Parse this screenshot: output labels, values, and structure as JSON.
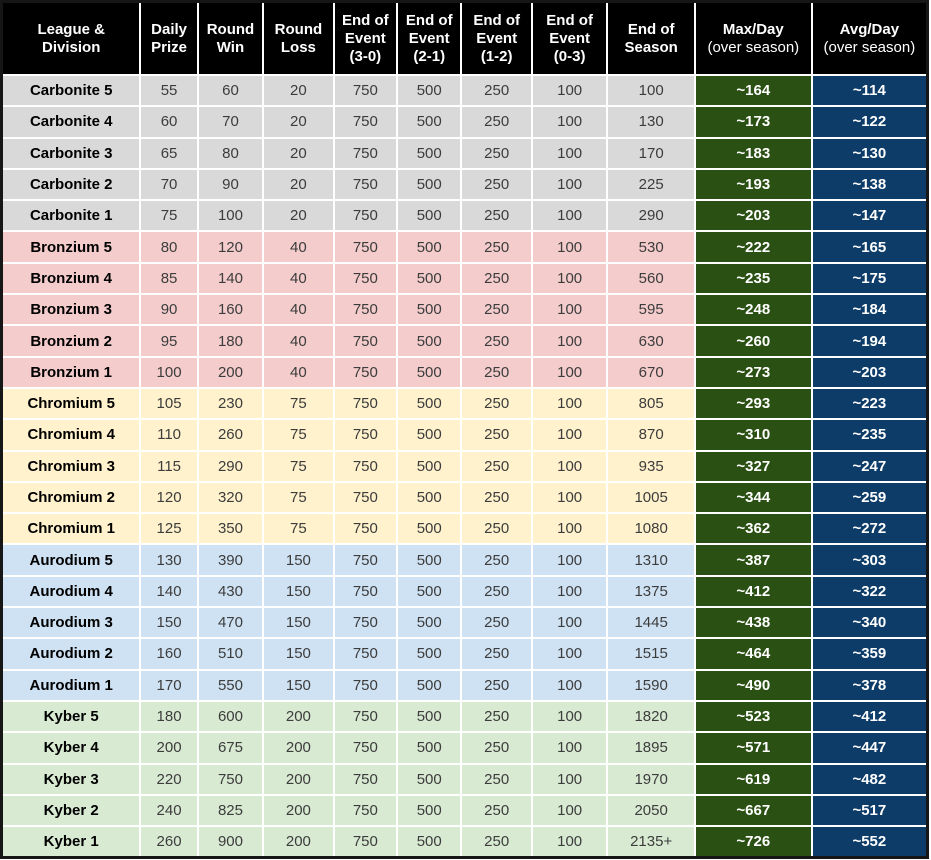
{
  "colors": {
    "header_bg": "#000000",
    "header_text": "#ffffff",
    "max_day_bg": "#2a5014",
    "avg_day_bg": "#0d3c68",
    "highlight_text": "#ffffff",
    "tier_backgrounds": {
      "carbonite": "#d9d9d9",
      "bronzium": "#f4cccc",
      "chromium": "#fff2cc",
      "aurodium": "#cfe2f3",
      "kyber": "#d9ead3"
    }
  },
  "chart_data": {
    "type": "table",
    "columns": [
      {
        "id": "division",
        "header_lines": [
          "League &",
          "Division"
        ]
      },
      {
        "id": "daily_prize",
        "header_lines": [
          "Daily",
          "Prize"
        ]
      },
      {
        "id": "round_win",
        "header_lines": [
          "Round",
          "Win"
        ]
      },
      {
        "id": "round_loss",
        "header_lines": [
          "Round",
          "Loss"
        ]
      },
      {
        "id": "end_event_3_0",
        "header_lines": [
          "End of",
          "Event",
          "(3-0)"
        ]
      },
      {
        "id": "end_event_2_1",
        "header_lines": [
          "End of",
          "Event",
          "(2-1)"
        ]
      },
      {
        "id": "end_event_1_2",
        "header_lines": [
          "End of",
          "Event",
          "(1-2)"
        ]
      },
      {
        "id": "end_event_0_3",
        "header_lines": [
          "End of",
          "Event",
          "(0-3)"
        ]
      },
      {
        "id": "end_season",
        "header_lines": [
          "End of",
          "Season"
        ]
      },
      {
        "id": "max_day",
        "header_lines": [
          "Max/Day",
          "(over season)"
        ],
        "subtitle_line": 1
      },
      {
        "id": "avg_day",
        "header_lines": [
          "Avg/Day",
          "(over season)"
        ],
        "subtitle_line": 1
      }
    ],
    "rows": [
      {
        "tier": "carbonite",
        "division": "Carbonite 5",
        "daily_prize": "55",
        "round_win": "60",
        "round_loss": "20",
        "end_event_3_0": "750",
        "end_event_2_1": "500",
        "end_event_1_2": "250",
        "end_event_0_3": "100",
        "end_season": "100",
        "max_day": "~164",
        "avg_day": "~114"
      },
      {
        "tier": "carbonite",
        "division": "Carbonite 4",
        "daily_prize": "60",
        "round_win": "70",
        "round_loss": "20",
        "end_event_3_0": "750",
        "end_event_2_1": "500",
        "end_event_1_2": "250",
        "end_event_0_3": "100",
        "end_season": "130",
        "max_day": "~173",
        "avg_day": "~122"
      },
      {
        "tier": "carbonite",
        "division": "Carbonite 3",
        "daily_prize": "65",
        "round_win": "80",
        "round_loss": "20",
        "end_event_3_0": "750",
        "end_event_2_1": "500",
        "end_event_1_2": "250",
        "end_event_0_3": "100",
        "end_season": "170",
        "max_day": "~183",
        "avg_day": "~130"
      },
      {
        "tier": "carbonite",
        "division": "Carbonite 2",
        "daily_prize": "70",
        "round_win": "90",
        "round_loss": "20",
        "end_event_3_0": "750",
        "end_event_2_1": "500",
        "end_event_1_2": "250",
        "end_event_0_3": "100",
        "end_season": "225",
        "max_day": "~193",
        "avg_day": "~138"
      },
      {
        "tier": "carbonite",
        "division": "Carbonite 1",
        "daily_prize": "75",
        "round_win": "100",
        "round_loss": "20",
        "end_event_3_0": "750",
        "end_event_2_1": "500",
        "end_event_1_2": "250",
        "end_event_0_3": "100",
        "end_season": "290",
        "max_day": "~203",
        "avg_day": "~147"
      },
      {
        "tier": "bronzium",
        "division": "Bronzium 5",
        "daily_prize": "80",
        "round_win": "120",
        "round_loss": "40",
        "end_event_3_0": "750",
        "end_event_2_1": "500",
        "end_event_1_2": "250",
        "end_event_0_3": "100",
        "end_season": "530",
        "max_day": "~222",
        "avg_day": "~165"
      },
      {
        "tier": "bronzium",
        "division": "Bronzium 4",
        "daily_prize": "85",
        "round_win": "140",
        "round_loss": "40",
        "end_event_3_0": "750",
        "end_event_2_1": "500",
        "end_event_1_2": "250",
        "end_event_0_3": "100",
        "end_season": "560",
        "max_day": "~235",
        "avg_day": "~175"
      },
      {
        "tier": "bronzium",
        "division": "Bronzium 3",
        "daily_prize": "90",
        "round_win": "160",
        "round_loss": "40",
        "end_event_3_0": "750",
        "end_event_2_1": "500",
        "end_event_1_2": "250",
        "end_event_0_3": "100",
        "end_season": "595",
        "max_day": "~248",
        "avg_day": "~184"
      },
      {
        "tier": "bronzium",
        "division": "Bronzium 2",
        "daily_prize": "95",
        "round_win": "180",
        "round_loss": "40",
        "end_event_3_0": "750",
        "end_event_2_1": "500",
        "end_event_1_2": "250",
        "end_event_0_3": "100",
        "end_season": "630",
        "max_day": "~260",
        "avg_day": "~194"
      },
      {
        "tier": "bronzium",
        "division": "Bronzium 1",
        "daily_prize": "100",
        "round_win": "200",
        "round_loss": "40",
        "end_event_3_0": "750",
        "end_event_2_1": "500",
        "end_event_1_2": "250",
        "end_event_0_3": "100",
        "end_season": "670",
        "max_day": "~273",
        "avg_day": "~203"
      },
      {
        "tier": "chromium",
        "division": "Chromium 5",
        "daily_prize": "105",
        "round_win": "230",
        "round_loss": "75",
        "end_event_3_0": "750",
        "end_event_2_1": "500",
        "end_event_1_2": "250",
        "end_event_0_3": "100",
        "end_season": "805",
        "max_day": "~293",
        "avg_day": "~223"
      },
      {
        "tier": "chromium",
        "division": "Chromium 4",
        "daily_prize": "110",
        "round_win": "260",
        "round_loss": "75",
        "end_event_3_0": "750",
        "end_event_2_1": "500",
        "end_event_1_2": "250",
        "end_event_0_3": "100",
        "end_season": "870",
        "max_day": "~310",
        "avg_day": "~235"
      },
      {
        "tier": "chromium",
        "division": "Chromium 3",
        "daily_prize": "115",
        "round_win": "290",
        "round_loss": "75",
        "end_event_3_0": "750",
        "end_event_2_1": "500",
        "end_event_1_2": "250",
        "end_event_0_3": "100",
        "end_season": "935",
        "max_day": "~327",
        "avg_day": "~247"
      },
      {
        "tier": "chromium",
        "division": "Chromium 2",
        "daily_prize": "120",
        "round_win": "320",
        "round_loss": "75",
        "end_event_3_0": "750",
        "end_event_2_1": "500",
        "end_event_1_2": "250",
        "end_event_0_3": "100",
        "end_season": "1005",
        "max_day": "~344",
        "avg_day": "~259"
      },
      {
        "tier": "chromium",
        "division": "Chromium 1",
        "daily_prize": "125",
        "round_win": "350",
        "round_loss": "75",
        "end_event_3_0": "750",
        "end_event_2_1": "500",
        "end_event_1_2": "250",
        "end_event_0_3": "100",
        "end_season": "1080",
        "max_day": "~362",
        "avg_day": "~272"
      },
      {
        "tier": "aurodium",
        "division": "Aurodium 5",
        "daily_prize": "130",
        "round_win": "390",
        "round_loss": "150",
        "end_event_3_0": "750",
        "end_event_2_1": "500",
        "end_event_1_2": "250",
        "end_event_0_3": "100",
        "end_season": "1310",
        "max_day": "~387",
        "avg_day": "~303"
      },
      {
        "tier": "aurodium",
        "division": "Aurodium 4",
        "daily_prize": "140",
        "round_win": "430",
        "round_loss": "150",
        "end_event_3_0": "750",
        "end_event_2_1": "500",
        "end_event_1_2": "250",
        "end_event_0_3": "100",
        "end_season": "1375",
        "max_day": "~412",
        "avg_day": "~322"
      },
      {
        "tier": "aurodium",
        "division": "Aurodium 3",
        "daily_prize": "150",
        "round_win": "470",
        "round_loss": "150",
        "end_event_3_0": "750",
        "end_event_2_1": "500",
        "end_event_1_2": "250",
        "end_event_0_3": "100",
        "end_season": "1445",
        "max_day": "~438",
        "avg_day": "~340"
      },
      {
        "tier": "aurodium",
        "division": "Aurodium 2",
        "daily_prize": "160",
        "round_win": "510",
        "round_loss": "150",
        "end_event_3_0": "750",
        "end_event_2_1": "500",
        "end_event_1_2": "250",
        "end_event_0_3": "100",
        "end_season": "1515",
        "max_day": "~464",
        "avg_day": "~359"
      },
      {
        "tier": "aurodium",
        "division": "Aurodium 1",
        "daily_prize": "170",
        "round_win": "550",
        "round_loss": "150",
        "end_event_3_0": "750",
        "end_event_2_1": "500",
        "end_event_1_2": "250",
        "end_event_0_3": "100",
        "end_season": "1590",
        "max_day": "~490",
        "avg_day": "~378"
      },
      {
        "tier": "kyber",
        "division": "Kyber 5",
        "daily_prize": "180",
        "round_win": "600",
        "round_loss": "200",
        "end_event_3_0": "750",
        "end_event_2_1": "500",
        "end_event_1_2": "250",
        "end_event_0_3": "100",
        "end_season": "1820",
        "max_day": "~523",
        "avg_day": "~412"
      },
      {
        "tier": "kyber",
        "division": "Kyber 4",
        "daily_prize": "200",
        "round_win": "675",
        "round_loss": "200",
        "end_event_3_0": "750",
        "end_event_2_1": "500",
        "end_event_1_2": "250",
        "end_event_0_3": "100",
        "end_season": "1895",
        "max_day": "~571",
        "avg_day": "~447"
      },
      {
        "tier": "kyber",
        "division": "Kyber 3",
        "daily_prize": "220",
        "round_win": "750",
        "round_loss": "200",
        "end_event_3_0": "750",
        "end_event_2_1": "500",
        "end_event_1_2": "250",
        "end_event_0_3": "100",
        "end_season": "1970",
        "max_day": "~619",
        "avg_day": "~482"
      },
      {
        "tier": "kyber",
        "division": "Kyber 2",
        "daily_prize": "240",
        "round_win": "825",
        "round_loss": "200",
        "end_event_3_0": "750",
        "end_event_2_1": "500",
        "end_event_1_2": "250",
        "end_event_0_3": "100",
        "end_season": "2050",
        "max_day": "~667",
        "avg_day": "~517"
      },
      {
        "tier": "kyber",
        "division": "Kyber 1",
        "daily_prize": "260",
        "round_win": "900",
        "round_loss": "200",
        "end_event_3_0": "750",
        "end_event_2_1": "500",
        "end_event_1_2": "250",
        "end_event_0_3": "100",
        "end_season": "2135+",
        "max_day": "~726",
        "avg_day": "~552"
      }
    ]
  }
}
